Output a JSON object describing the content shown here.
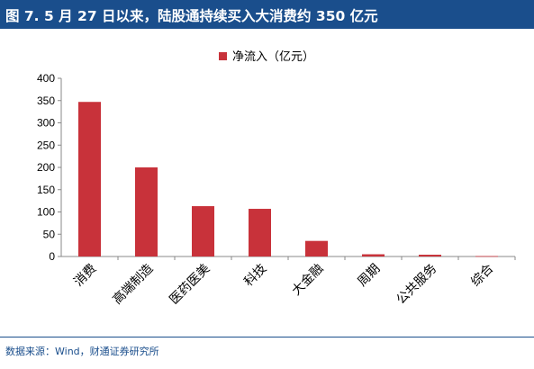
{
  "header": {
    "title": "图 7. 5 月 27 日以来，陆股通持续买入大消费约 350 亿元"
  },
  "footer": {
    "source": "数据来源：Wind，财通证券研究所"
  },
  "colors": {
    "header_bg": "#1a4e8c",
    "bar": "#c8323a",
    "axis": "#888888"
  },
  "chart_data": {
    "type": "bar",
    "categories": [
      "消费",
      "高端制造",
      "医药医美",
      "科技",
      "大金融",
      "周期",
      "公共服务",
      "综合"
    ],
    "series": [
      {
        "name": "净流入（亿元）",
        "values": [
          347,
          200,
          113,
          107,
          35,
          5,
          4,
          1
        ]
      }
    ],
    "yticks": [
      "0",
      "50",
      "100",
      "150",
      "200",
      "250",
      "300",
      "350",
      "400"
    ],
    "ylim": [
      0,
      400
    ],
    "legend": "top-center",
    "grid": false
  }
}
